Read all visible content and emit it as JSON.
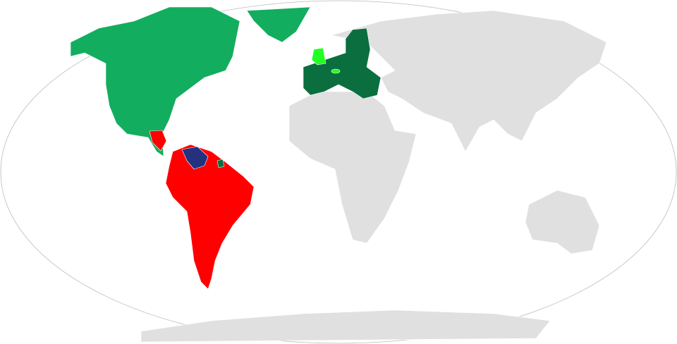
{
  "map": {
    "projection": "robinson-world",
    "colors": {
      "ocean": "#ffffff",
      "outline": "#bbbbbb",
      "no_data": "#e0e0e0",
      "medium_green": "#12ad5e",
      "dark_green": "#0b6e3f",
      "light_green": "#22ff22",
      "red": "#ff0000",
      "navy": "#23317f"
    },
    "regions": [
      {
        "id": "north-america",
        "fill": "medium_green"
      },
      {
        "id": "greenland",
        "fill": "medium_green"
      },
      {
        "id": "central-america",
        "fill": "red"
      },
      {
        "id": "south-america",
        "fill": "red"
      },
      {
        "id": "venezuela",
        "fill": "navy"
      },
      {
        "id": "guyana-region",
        "fill": "dark_green"
      },
      {
        "id": "european-union",
        "fill": "dark_green"
      },
      {
        "id": "united-kingdom",
        "fill": "light_green"
      },
      {
        "id": "switzerland",
        "fill": "light_green"
      },
      {
        "id": "eurasia",
        "fill": "no_data"
      },
      {
        "id": "africa",
        "fill": "no_data"
      },
      {
        "id": "australia",
        "fill": "no_data"
      },
      {
        "id": "antarctica",
        "fill": "no_data"
      }
    ]
  }
}
